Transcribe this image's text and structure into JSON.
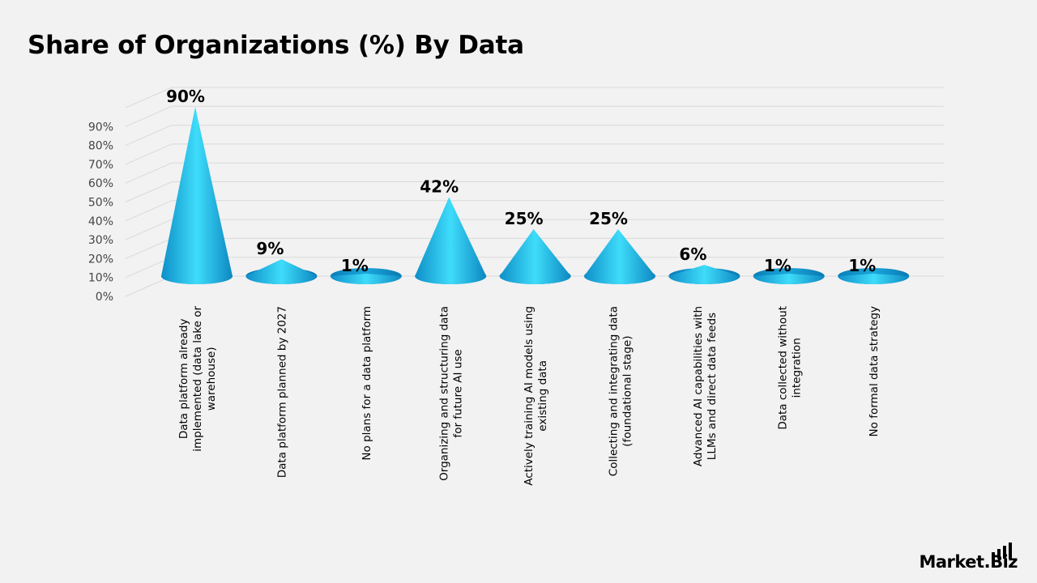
{
  "chart_data": {
    "type": "bar",
    "title": "Share of Organizations (%) By Data",
    "xlabel": "",
    "ylabel": "",
    "ylim": [
      0,
      90
    ],
    "yticks": [
      "0%",
      "10%",
      "20%",
      "30%",
      "40%",
      "50%",
      "60%",
      "70%",
      "80%",
      "90%"
    ],
    "grid": true,
    "categories": [
      [
        "Data platform already",
        "implemented (data lake or",
        "warehouse)"
      ],
      [
        "Data platform planned by 2027"
      ],
      [
        "No plans for a data platform"
      ],
      [
        "Organizing and structuring data",
        "for future AI use"
      ],
      [
        "Actively training AI models using",
        "existing data"
      ],
      [
        "Collecting and integrating data",
        "(foundational stage)"
      ],
      [
        "Advanced AI capabilities with",
        "LLMs and direct data feeds"
      ],
      [
        "Data collected without",
        "integration"
      ],
      [
        "No formal data strategy"
      ]
    ],
    "values": [
      90,
      9,
      1,
      42,
      25,
      25,
      6,
      1,
      1
    ],
    "data_labels": [
      "90%",
      "9%",
      "1%",
      "42%",
      "25%",
      "25%",
      "6%",
      "1%",
      "1%"
    ],
    "colors": {
      "cone_light": "#3fd8f8",
      "cone_mid": "#18b6e6",
      "cone_dark": "#0a7fb8",
      "grid": "#d9d9d9"
    }
  },
  "logo": {
    "text": "Market.Biz",
    "icon": "bar-chart-icon"
  }
}
